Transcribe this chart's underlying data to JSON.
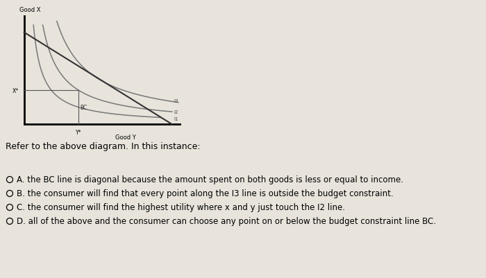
{
  "title": "Good X",
  "xlabel": "Good Y",
  "x_label_point": "X*",
  "y_label_point": "Y*",
  "bg_color": "#e8e4dc",
  "bc_label": "BC",
  "curve_labels": [
    "I3",
    "I2",
    "I1"
  ],
  "bc_color": "#333333",
  "curve_color": "#777777",
  "refer_text": "Refer to the above diagram. In this instance:",
  "option_texts": [
    "A. the BC line is diagonal because the amount spent on both goods is less or equal to income.",
    "B. the consumer will find that every point along the I3 line is outside the budget constraint.",
    "C. the consumer will find the highest utility where x and y just touch the I2 line.",
    "D. all of the above and the consumer can choose any point on or below the budget constraint line BC."
  ],
  "option_filled": [
    false,
    false,
    false,
    false
  ]
}
